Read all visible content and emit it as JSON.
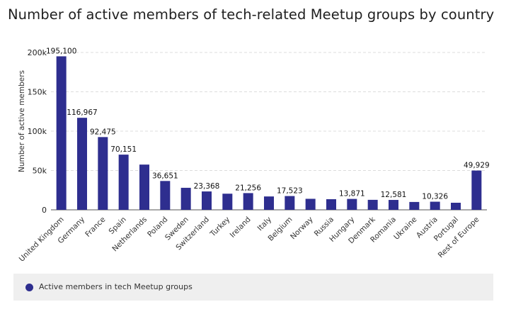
{
  "colors": {
    "bar": "#2e2e8f",
    "grid": "#dcdcdc",
    "axis": "#555555",
    "legend_bg": "#efefef"
  },
  "chart_data": {
    "type": "bar",
    "title": "Number of active members of tech-related Meetup groups by country",
    "ylabel": "Number of active members",
    "xlabel": "",
    "ylim": [
      0,
      200000
    ],
    "yticks": [
      0,
      50000,
      100000,
      150000,
      200000
    ],
    "ytick_labels": [
      "0",
      "50k",
      "100k",
      "150k",
      "200k"
    ],
    "grid": true,
    "legend_position": "bottom",
    "categories": [
      "United Kingdom",
      "Germany",
      "France",
      "Spain",
      "Netherlands",
      "Poland",
      "Sweden",
      "Switzerland",
      "Turkey",
      "Ireland",
      "Italy",
      "Belgium",
      "Norway",
      "Russia",
      "Hungary",
      "Denmark",
      "Romania",
      "Ukraine",
      "Austria",
      "Portugal",
      "Rest of Europe"
    ],
    "series": [
      {
        "name": "Active members in tech Meetup groups",
        "values": [
          195100,
          116967,
          92475,
          70151,
          57500,
          36651,
          28000,
          23368,
          20500,
          21256,
          17000,
          17523,
          14000,
          13500,
          13871,
          12700,
          12581,
          10000,
          10326,
          9000,
          49929
        ]
      }
    ],
    "data_labels": [
      "195,100",
      "116,967",
      "92,475",
      "70,151",
      "",
      "36,651",
      "",
      "23,368",
      "",
      "21,256",
      "",
      "17,523",
      "",
      "",
      "13,871",
      "",
      "12,581",
      "",
      "10,326",
      "",
      "49,929"
    ]
  }
}
